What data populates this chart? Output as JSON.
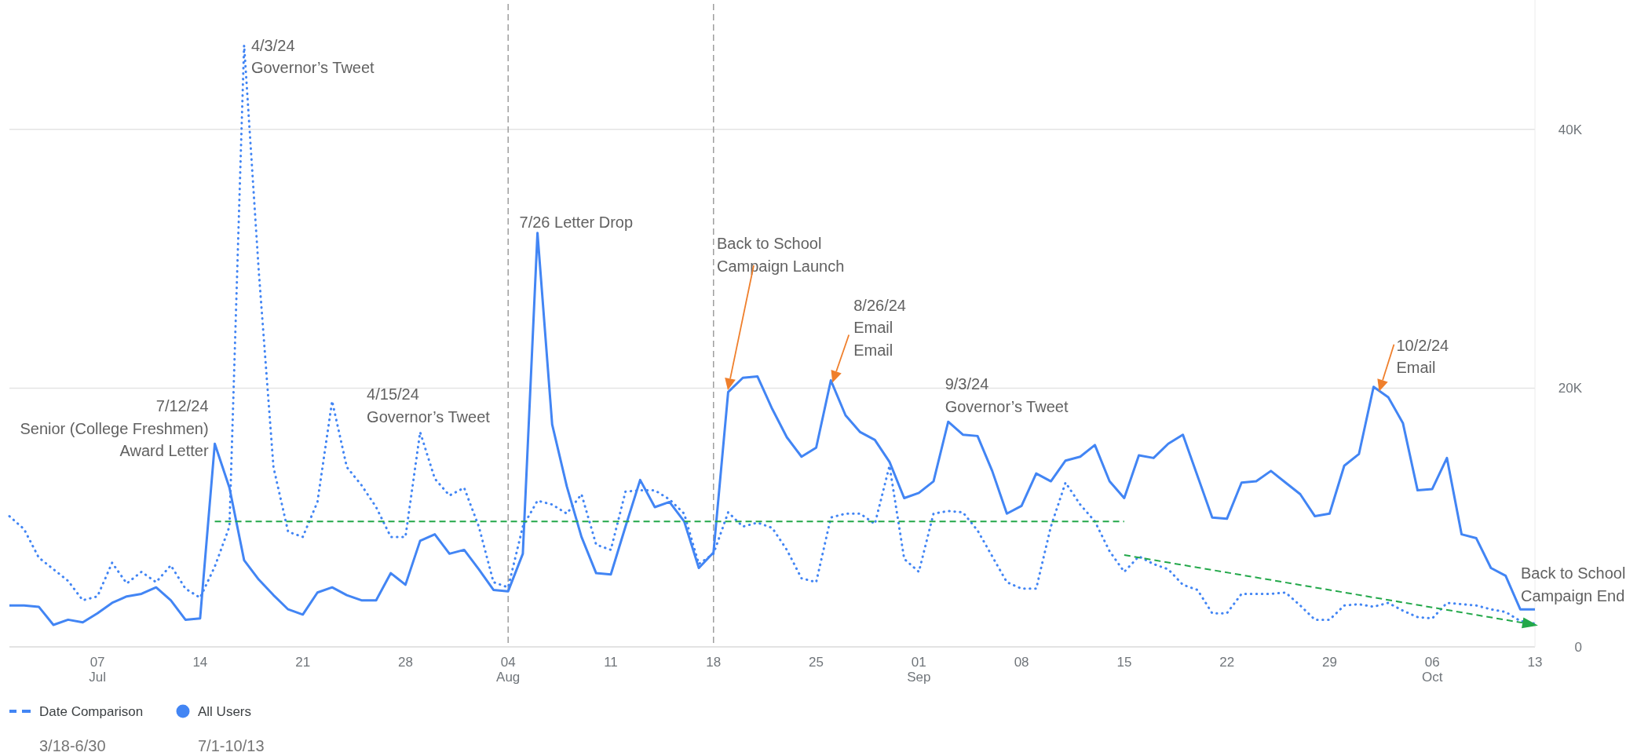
{
  "chart_data": {
    "type": "line",
    "x": [
      "--07-01",
      "--07-02",
      "--07-03",
      "--07-04",
      "--07-05",
      "--07-06",
      "--07-07",
      "--07-08",
      "--07-09",
      "--07-10",
      "--07-11",
      "--07-12",
      "--07-13",
      "--07-14",
      "--07-15",
      "--07-16",
      "--07-17",
      "--07-18",
      "--07-19",
      "--07-20",
      "--07-21",
      "--07-22",
      "--07-23",
      "--07-24",
      "--07-25",
      "--07-26",
      "--07-27",
      "--07-28",
      "--07-29",
      "--07-30",
      "--07-31",
      "--08-01",
      "--08-02",
      "--08-03",
      "--08-04",
      "--08-05",
      "--08-06",
      "--08-07",
      "--08-08",
      "--08-09",
      "--08-10",
      "--08-11",
      "--08-12",
      "--08-13",
      "--08-14",
      "--08-15",
      "--08-16",
      "--08-17",
      "--08-18",
      "--08-19",
      "--08-20",
      "--08-21",
      "--08-22",
      "--08-23",
      "--08-24",
      "--08-25",
      "--08-26",
      "--08-27",
      "--08-28",
      "--08-29",
      "--08-30",
      "--08-31",
      "--09-01",
      "--09-02",
      "--09-03",
      "--09-04",
      "--09-05",
      "--09-06",
      "--09-07",
      "--09-08",
      "--09-09",
      "--09-10",
      "--09-11",
      "--09-12",
      "--09-13",
      "--09-14",
      "--09-15",
      "--09-16",
      "--09-17",
      "--09-18",
      "--09-19",
      "--09-20",
      "--09-21",
      "--09-22",
      "--09-23",
      "--09-24",
      "--09-25",
      "--09-26",
      "--09-27",
      "--09-28",
      "--09-29",
      "--09-30",
      "--10-01",
      "--10-02",
      "--10-03",
      "--10-04",
      "--10-05",
      "--10-06",
      "--10-07",
      "--10-08",
      "--10-09",
      "--10-10",
      "--10-11",
      "--10-12",
      "--10-13"
    ],
    "xlim": [
      "--07-01",
      "--10-13"
    ],
    "xticks": [
      {
        "value": "--07-07",
        "label": "07\nJul"
      },
      {
        "value": "--07-14",
        "label": "14"
      },
      {
        "value": "--07-21",
        "label": "21"
      },
      {
        "value": "--07-28",
        "label": "28"
      },
      {
        "value": "--08-04",
        "label": "04\nAug"
      },
      {
        "value": "--08-11",
        "label": "11"
      },
      {
        "value": "--08-18",
        "label": "18"
      },
      {
        "value": "--08-25",
        "label": "25"
      },
      {
        "value": "--09-01",
        "label": "01\nSep"
      },
      {
        "value": "--09-08",
        "label": "08"
      },
      {
        "value": "--09-15",
        "label": "15"
      },
      {
        "value": "--09-22",
        "label": "22"
      },
      {
        "value": "--09-29",
        "label": "29"
      },
      {
        "value": "--10-06",
        "label": "06\nOct"
      },
      {
        "value": "--10-13",
        "label": "13"
      }
    ],
    "ylim": [
      0,
      50000
    ],
    "yticks": [
      0,
      {
        "value": 20000,
        "label": "20K"
      },
      {
        "value": 40000,
        "label": "40K"
      }
    ],
    "grid": "y",
    "legend": "bottom left",
    "series": [
      {
        "name": "Date Comparison",
        "color": "#4285f4",
        "line_style": "dotted",
        "values": [
          10100,
          9100,
          6900,
          6000,
          5100,
          3600,
          3900,
          6500,
          4900,
          5800,
          5000,
          6300,
          4500,
          3800,
          6200,
          9300,
          46500,
          29000,
          13900,
          8900,
          8500,
          11200,
          19000,
          13900,
          12500,
          10800,
          8500,
          8500,
          16600,
          13000,
          11700,
          12300,
          9300,
          5000,
          4600,
          9300,
          11300,
          11000,
          10300,
          11800,
          7900,
          7500,
          12000,
          12100,
          12100,
          11400,
          10300,
          6400,
          7200,
          10400,
          9300,
          9600,
          9200,
          7500,
          5300,
          5000,
          10000,
          10300,
          10300,
          9500,
          14000,
          6800,
          5800,
          10300,
          10500,
          10400,
          9000,
          7000,
          5000,
          4500,
          4500,
          9300,
          12700,
          11000,
          9700,
          7400,
          5800,
          7000,
          6400,
          6000,
          4800,
          4400,
          2600,
          2600,
          4100,
          4100,
          4100,
          4200,
          3200,
          2100,
          2100,
          3200,
          3300,
          3100,
          3400,
          2800,
          2300,
          2200,
          3400,
          3300,
          3200,
          2900,
          2700,
          2000,
          1800
        ]
      },
      {
        "name": "All Users",
        "color": "#4285f4",
        "line_style": "solid",
        "values": [
          3200,
          3200,
          3100,
          1700,
          2100,
          1900,
          2600,
          3400,
          3900,
          4100,
          4600,
          3600,
          2100,
          2200,
          15700,
          12300,
          6700,
          5200,
          4000,
          2900,
          2500,
          4200,
          4600,
          4000,
          3600,
          3600,
          5700,
          4800,
          8200,
          8700,
          7200,
          7500,
          6000,
          4400,
          4300,
          7200,
          32000,
          17200,
          12400,
          8500,
          5700,
          5600,
          9300,
          12900,
          10800,
          11200,
          9700,
          6100,
          7300,
          19700,
          20800,
          20900,
          18400,
          16200,
          14700,
          15400,
          20600,
          17900,
          16600,
          16000,
          14300,
          11500,
          11900,
          12800,
          17400,
          16400,
          16300,
          13600,
          10300,
          10900,
          13400,
          12800,
          14400,
          14700,
          15600,
          12800,
          11500,
          14800,
          14600,
          15700,
          16400,
          13200,
          10000,
          9900,
          12700,
          12800,
          13600,
          12700,
          11800,
          10100,
          10300,
          14000,
          14900,
          20100,
          19300,
          17300,
          12100,
          12200,
          14600,
          8700,
          8400,
          6100,
          5500,
          2900,
          2900
        ]
      },
      {
        "type": "line",
        "color": "#23a84a",
        "line_style": "dashed",
        "x": [
          "--07-15",
          "--09-15"
        ],
        "values": [
          9700,
          9700
        ]
      },
      {
        "type": "line",
        "color": "#23a84a",
        "line_style": "dashed",
        "x": [
          "--09-15",
          "--10-13"
        ],
        "values": [
          7100,
          1700
        ]
      }
    ],
    "ref_lines": [
      {
        "axis": "x",
        "value": "--08-04",
        "color": "#9e9e9e",
        "line_style": "dashed"
      },
      {
        "axis": "x",
        "value": "--08-18",
        "color": "#9e9e9e",
        "line_style": "dashed"
      }
    ],
    "annotations": [
      {
        "text": "4/3/24\nGovernor’s Tweet",
        "x": "--07-17",
        "y": 46500
      },
      {
        "text": "7/12/24\nSenior (College Freshmen)\nAward Letter",
        "x": "--07-15",
        "y": 15700
      },
      {
        "text": "4/15/24\nGovernor’s Tweet",
        "x": "--07-29",
        "y": 16600
      },
      {
        "text": "7/26 Letter Drop",
        "x": "--08-06",
        "y": 32000
      },
      "Back to School\nCampaign Launch",
      {
        "text": "8/26/24\nEmail\nEmail",
        "x": "--08-26",
        "y": 20600
      },
      {
        "text": "9/3/24\nGovernor’s Tweet",
        "x": "--09-03",
        "y": 17400
      },
      {
        "text": "10/2/24\nEmail",
        "x": "--10-02",
        "y": 20100
      },
      {
        "text": "Back to School\nCampaign End",
        "x": "--10-13",
        "y": 2900
      },
      "3/18-6/30",
      "7/1-10/13"
    ]
  }
}
